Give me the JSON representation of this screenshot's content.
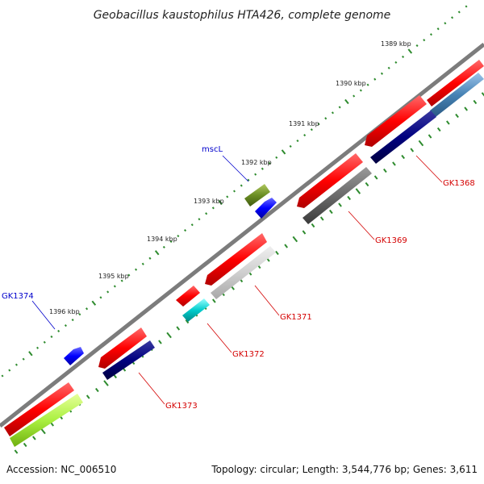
{
  "title": "Geobacillus kaustophilus HTA426, complete genome",
  "footer": {
    "accession": "Accession: NC_006510",
    "summary": "Topology: circular; Length: 3,544,776 bp; Genes: 3,611"
  },
  "colors": {
    "backbone": "#8a8a8a",
    "major_tick": "#2e8b2e",
    "minor_tick": "#2e8b2e",
    "label_red": "#d40000",
    "label_blue": "#0000cc"
  },
  "ticks": [
    {
      "label": "1389 kbp"
    },
    {
      "label": "1390 kbp"
    },
    {
      "label": "1391 kbp"
    },
    {
      "label": "1392 kbp"
    },
    {
      "label": "1393 kbp"
    },
    {
      "label": "1394 kbp"
    },
    {
      "label": "1395 kbp"
    },
    {
      "label": "1396 kbp"
    }
  ],
  "genes": [
    {
      "name": "GK1368",
      "color": "#dd0000"
    },
    {
      "name": "GK1369",
      "color": "#dd0000"
    },
    {
      "name": "GK1371",
      "color": "#dd0000"
    },
    {
      "name": "GK1372",
      "color": "#dd0000"
    },
    {
      "name": "GK1373",
      "color": "#dd0000"
    },
    {
      "name": "mscL",
      "color": "#0000cc"
    },
    {
      "name": "GK1374",
      "color": "#0000cc"
    }
  ]
}
